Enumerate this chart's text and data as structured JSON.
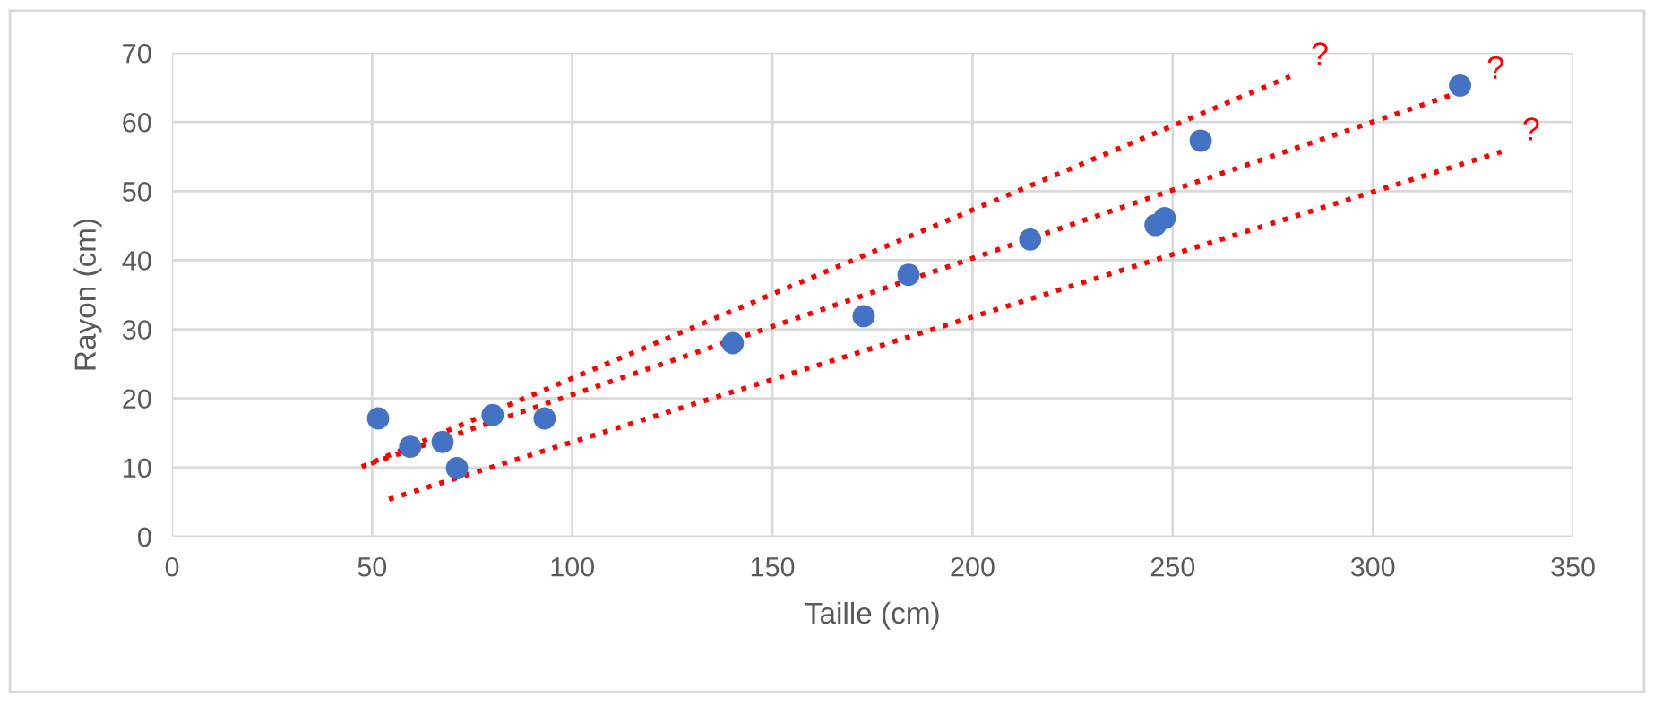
{
  "chart_data": {
    "type": "scatter",
    "xlabel": "Taille (cm)",
    "ylabel": "Rayon (cm)",
    "xlim": [
      0,
      350
    ],
    "xticks": [
      0,
      50,
      100,
      150,
      200,
      250,
      300,
      350
    ],
    "ylim": [
      0,
      70
    ],
    "yticks": [
      0,
      10,
      20,
      30,
      40,
      50,
      60,
      70
    ],
    "grid": true,
    "series": [
      {
        "marker": "circle",
        "color": "#4472c4",
        "x": [
          51.5,
          59.5,
          67.6,
          71.2,
          80.1,
          93.1,
          140.1,
          172.8,
          184,
          214.4,
          245.7,
          248,
          257,
          321.8
        ],
        "values": [
          17.1,
          13,
          13.7,
          9.9,
          17.6,
          17.1,
          28,
          31.9,
          37.9,
          43,
          45.1,
          46.1,
          57.3,
          65.3
        ]
      },
      {
        "type": "line",
        "marker": "none",
        "color": "#ff0000",
        "line_style": "dotted",
        "x": [
          47.4,
          279.3
        ],
        "values": [
          10.1,
          66.6
        ]
      },
      {
        "type": "line",
        "marker": "none",
        "color": "#ff0000",
        "line_style": "dotted",
        "x": [
          49.7,
          323.2
        ],
        "values": [
          10.6,
          64.6
        ]
      },
      {
        "type": "line",
        "marker": "none",
        "color": "#ff0000",
        "line_style": "dotted",
        "x": [
          54.2,
          332.1
        ],
        "values": [
          5.4,
          55.7
        ]
      }
    ],
    "annotations": [
      {
        "text": "?",
        "x": 279.3,
        "y": 66.6
      },
      {
        "text": "?",
        "x": 323.2,
        "y": 64.6
      },
      {
        "text": "?",
        "x": 332.1,
        "y": 55.7
      }
    ]
  }
}
